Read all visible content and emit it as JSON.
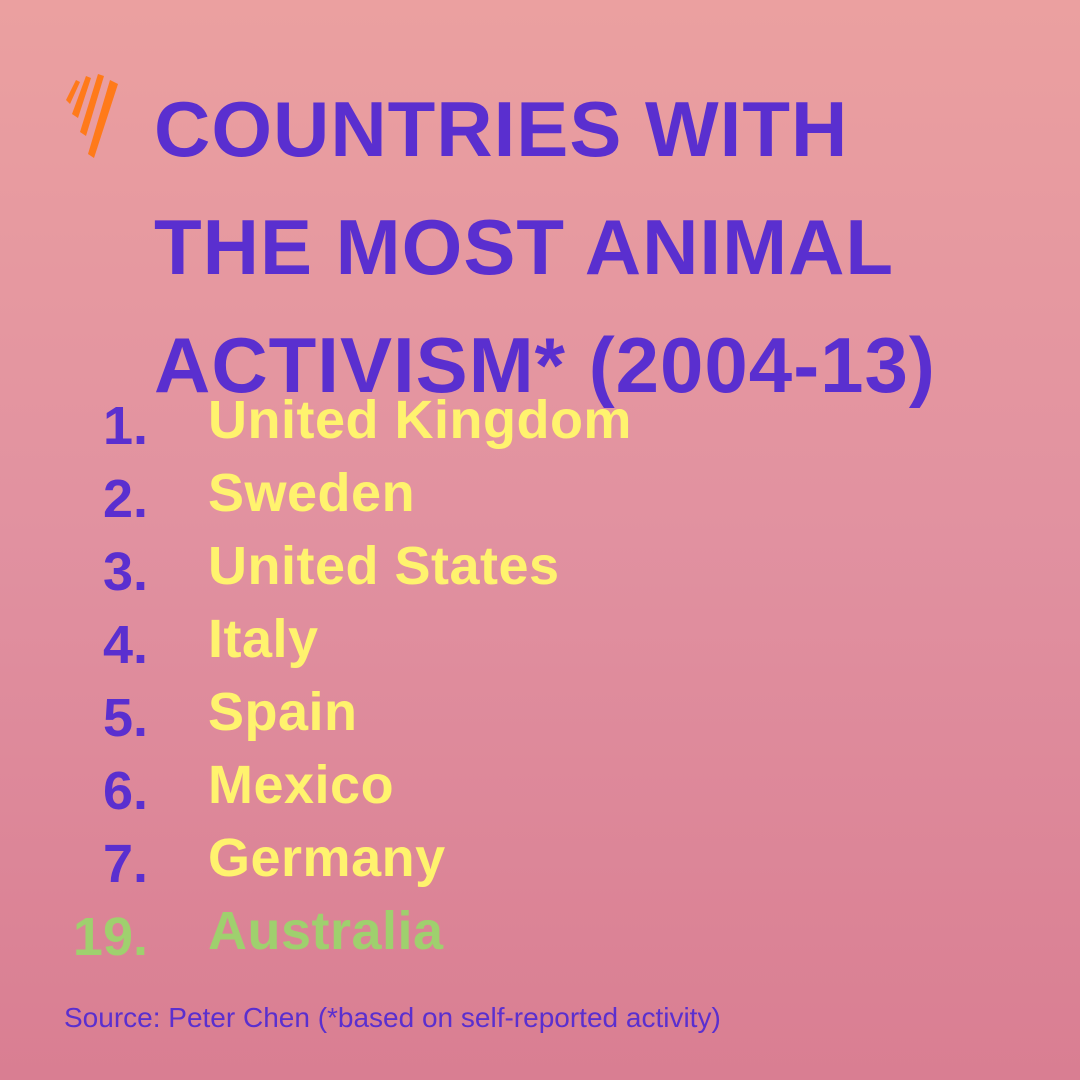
{
  "title_lines": [
    "COUNTRIES WITH",
    "THE MOST ANIMAL",
    "ACTIVISM* (2004-13)"
  ],
  "rankings": [
    {
      "rank": "1.",
      "country": "United Kingdom"
    },
    {
      "rank": "2.",
      "country": "Sweden"
    },
    {
      "rank": "3.",
      "country": "United States"
    },
    {
      "rank": "4.",
      "country": "Italy"
    },
    {
      "rank": "5.",
      "country": "Spain"
    },
    {
      "rank": "6.",
      "country": "Mexico"
    },
    {
      "rank": "7.",
      "country": "Germany"
    },
    {
      "rank": "19.",
      "country": "Australia"
    }
  ],
  "source": "Source: Peter Chen (*based on self-reported activity)",
  "colors": {
    "title": "#5a2fcf",
    "country": "#fff36e",
    "highlight": "#9fd06e",
    "logo": "#ff7a1a"
  },
  "logo_icon": "sbs-logo-icon"
}
